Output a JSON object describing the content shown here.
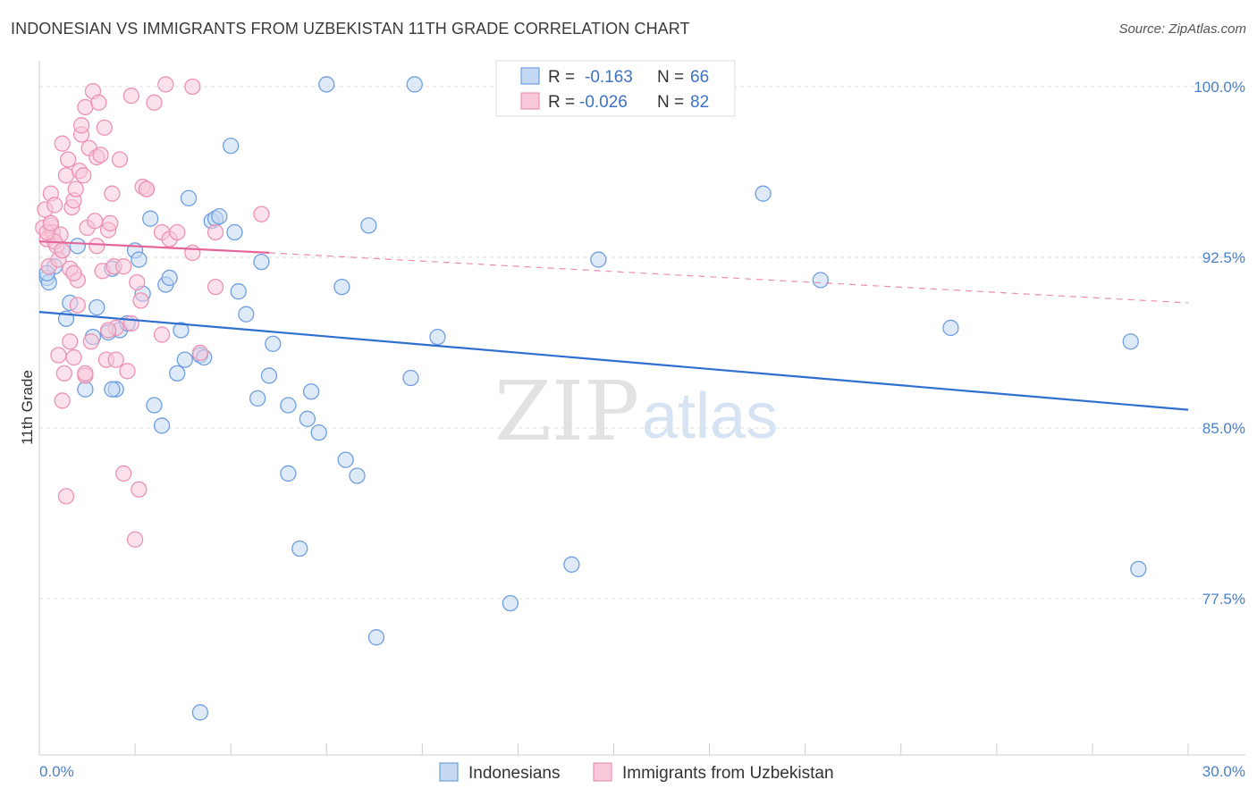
{
  "title": "INDONESIAN VS IMMIGRANTS FROM UZBEKISTAN 11TH GRADE CORRELATION CHART",
  "source": "Source: ZipAtlas.com",
  "watermark": {
    "zip": "ZIP",
    "atlas": "atlas"
  },
  "legend_top": {
    "rows": [
      {
        "r_label": "R =",
        "r_value": "-0.163",
        "n_label": "N =",
        "n_value": "66"
      },
      {
        "r_label": "R =",
        "r_value": "-0.026",
        "n_label": "N =",
        "n_value": "82"
      }
    ]
  },
  "chart_data": {
    "type": "scatter",
    "title": "INDONESIAN VS IMMIGRANTS FROM UZBEKISTAN 11TH GRADE CORRELATION CHART",
    "xlabel": "",
    "ylabel": "11th Grade",
    "xlim": [
      0,
      30
    ],
    "ylim": [
      71.5,
      101.5
    ],
    "x_tick_labels": [
      "0.0%",
      "30.0%"
    ],
    "y_ticks": [
      77.5,
      85.0,
      92.5,
      100.0
    ],
    "y_tick_labels": [
      "77.5%",
      "85.0%",
      "92.5%",
      "100.0%"
    ],
    "grid": true,
    "series": [
      {
        "name": "Indonesians",
        "color": "#6f9fe0",
        "fill": "#c5d9f3",
        "line_color": "#2f6fcf",
        "trend": {
          "x": [
            0,
            30
          ],
          "y": [
            90.1,
            85.8
          ],
          "dashed_from": null
        },
        "points": [
          [
            0.2,
            91.6
          ],
          [
            0.4,
            92.1
          ],
          [
            0.6,
            92.8
          ],
          [
            0.7,
            89.8
          ],
          [
            0.8,
            90.5
          ],
          [
            1.0,
            93.0
          ],
          [
            1.2,
            86.7
          ],
          [
            1.4,
            89.0
          ],
          [
            1.5,
            90.3
          ],
          [
            1.8,
            89.2
          ],
          [
            1.9,
            92.0
          ],
          [
            2.0,
            86.7
          ],
          [
            2.1,
            89.3
          ],
          [
            2.3,
            89.6
          ],
          [
            2.5,
            92.8
          ],
          [
            2.6,
            92.4
          ],
          [
            2.7,
            90.9
          ],
          [
            2.9,
            94.2
          ],
          [
            3.0,
            86.0
          ],
          [
            3.2,
            85.1
          ],
          [
            3.3,
            91.3
          ],
          [
            3.4,
            91.6
          ],
          [
            3.6,
            87.4
          ],
          [
            3.7,
            89.3
          ],
          [
            3.8,
            88.0
          ],
          [
            3.9,
            95.1
          ],
          [
            4.2,
            88.2
          ],
          [
            4.3,
            88.1
          ],
          [
            4.5,
            94.1
          ],
          [
            4.6,
            94.2
          ],
          [
            4.7,
            94.3
          ],
          [
            5.0,
            97.4
          ],
          [
            5.1,
            93.6
          ],
          [
            5.2,
            91.0
          ],
          [
            5.4,
            90.0
          ],
          [
            5.7,
            86.3
          ],
          [
            5.8,
            92.3
          ],
          [
            6.0,
            87.3
          ],
          [
            6.1,
            88.7
          ],
          [
            6.5,
            86.0
          ],
          [
            6.5,
            83.0
          ],
          [
            6.8,
            79.7
          ],
          [
            7.0,
            85.4
          ],
          [
            7.1,
            86.6
          ],
          [
            7.3,
            84.8
          ],
          [
            7.5,
            100.1
          ],
          [
            7.9,
            91.2
          ],
          [
            8.0,
            83.6
          ],
          [
            8.3,
            82.9
          ],
          [
            8.6,
            93.9
          ],
          [
            8.8,
            75.8
          ],
          [
            9.7,
            87.2
          ],
          [
            9.8,
            100.1
          ],
          [
            10.4,
            89.0
          ],
          [
            12.3,
            77.3
          ],
          [
            13.9,
            79.0
          ],
          [
            14.6,
            92.4
          ],
          [
            18.9,
            95.3
          ],
          [
            20.4,
            91.5
          ],
          [
            23.8,
            89.4
          ],
          [
            28.5,
            88.8
          ],
          [
            28.7,
            78.8
          ],
          [
            4.2,
            72.5
          ],
          [
            0.25,
            91.4
          ],
          [
            0.2,
            91.8
          ],
          [
            1.9,
            86.7
          ]
        ]
      },
      {
        "name": "Immigrants from Uzbekistan",
        "color": "#ec93b3",
        "fill": "#f8c9da",
        "line_color": "#e5659a",
        "trend": {
          "x": [
            0,
            6.0
          ],
          "y": [
            93.2,
            92.7
          ],
          "dashed_to_x": 30,
          "dashed_to_y": 90.5
        },
        "points": [
          [
            0.1,
            93.8
          ],
          [
            0.15,
            94.6
          ],
          [
            0.2,
            93.3
          ],
          [
            0.25,
            92.1
          ],
          [
            0.3,
            93.9
          ],
          [
            0.3,
            95.3
          ],
          [
            0.35,
            93.6
          ],
          [
            0.4,
            94.8
          ],
          [
            0.45,
            93.0
          ],
          [
            0.5,
            88.2
          ],
          [
            0.5,
            92.4
          ],
          [
            0.55,
            93.5
          ],
          [
            0.6,
            86.2
          ],
          [
            0.6,
            97.5
          ],
          [
            0.65,
            87.4
          ],
          [
            0.7,
            96.1
          ],
          [
            0.7,
            82.0
          ],
          [
            0.75,
            96.8
          ],
          [
            0.8,
            88.8
          ],
          [
            0.8,
            92.0
          ],
          [
            0.85,
            94.7
          ],
          [
            0.9,
            95.0
          ],
          [
            0.9,
            88.1
          ],
          [
            0.95,
            95.5
          ],
          [
            1.0,
            90.4
          ],
          [
            1.0,
            91.5
          ],
          [
            1.05,
            96.3
          ],
          [
            1.1,
            97.9
          ],
          [
            1.1,
            98.3
          ],
          [
            1.15,
            96.1
          ],
          [
            1.2,
            87.3
          ],
          [
            1.2,
            99.1
          ],
          [
            1.25,
            93.8
          ],
          [
            1.3,
            97.3
          ],
          [
            1.35,
            88.8
          ],
          [
            1.4,
            99.8
          ],
          [
            1.45,
            94.1
          ],
          [
            1.5,
            93.0
          ],
          [
            1.5,
            96.9
          ],
          [
            1.55,
            99.3
          ],
          [
            1.6,
            97.0
          ],
          [
            1.65,
            91.9
          ],
          [
            1.7,
            98.2
          ],
          [
            1.75,
            88.0
          ],
          [
            1.8,
            93.7
          ],
          [
            1.85,
            94.0
          ],
          [
            1.9,
            95.3
          ],
          [
            1.95,
            92.1
          ],
          [
            2.0,
            88.0
          ],
          [
            2.0,
            89.4
          ],
          [
            2.1,
            96.8
          ],
          [
            2.2,
            92.1
          ],
          [
            2.2,
            83.0
          ],
          [
            2.3,
            87.5
          ],
          [
            2.4,
            89.6
          ],
          [
            2.4,
            99.6
          ],
          [
            2.5,
            80.1
          ],
          [
            2.55,
            91.4
          ],
          [
            2.6,
            82.3
          ],
          [
            2.65,
            90.6
          ],
          [
            2.7,
            95.6
          ],
          [
            2.8,
            95.5
          ],
          [
            3.0,
            99.3
          ],
          [
            3.2,
            89.1
          ],
          [
            3.2,
            93.6
          ],
          [
            3.3,
            100.1
          ],
          [
            3.4,
            93.3
          ],
          [
            3.6,
            93.6
          ],
          [
            4.0,
            92.7
          ],
          [
            4.0,
            100.0
          ],
          [
            4.6,
            93.6
          ],
          [
            4.6,
            91.2
          ],
          [
            5.8,
            94.4
          ],
          [
            0.4,
            93.2
          ],
          [
            0.2,
            93.6
          ],
          [
            0.3,
            94.0
          ],
          [
            1.2,
            87.4
          ],
          [
            2.8,
            95.5
          ],
          [
            0.6,
            92.8
          ],
          [
            0.9,
            91.8
          ],
          [
            4.2,
            88.3
          ],
          [
            1.8,
            89.3
          ]
        ]
      }
    ],
    "legend_bottom": [
      "Indonesians",
      "Immigrants from Uzbekistan"
    ]
  }
}
